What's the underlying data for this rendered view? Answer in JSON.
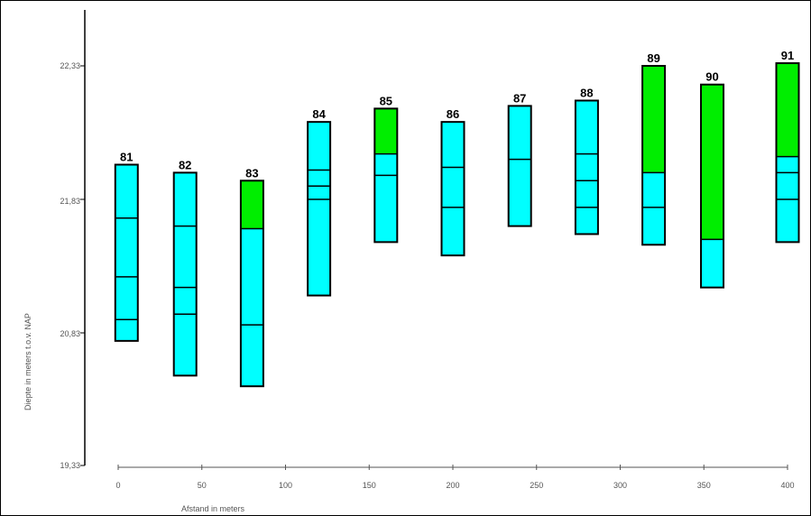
{
  "chart_data": {
    "type": "bar",
    "title": "",
    "xlabel": "Afstand in meters",
    "ylabel": "Diepte in meters t.o.v. NAP",
    "xlim": [
      0,
      400
    ],
    "ylim": [
      19.33,
      22.83
    ],
    "x_ticks": [
      "0",
      "50",
      "100",
      "150",
      "200",
      "250",
      "300",
      "350",
      "400"
    ],
    "y_ticks": [
      "22,33",
      "21,83",
      "20,83",
      "19,33"
    ],
    "colors": {
      "green": "#00ee00",
      "cyan": "#00ffff",
      "outline": "#000000"
    },
    "boreholes": [
      {
        "label": "81",
        "x": 5,
        "top": 21.96,
        "bottom": 21.3,
        "green_to": null,
        "layer_lines": [
          21.76,
          21.54,
          21.38
        ]
      },
      {
        "label": "82",
        "x": 40,
        "top": 21.93,
        "bottom": 21.17,
        "green_to": null,
        "layer_lines": [
          21.73,
          21.5,
          21.4
        ]
      },
      {
        "label": "83",
        "x": 80,
        "top": 21.9,
        "bottom": 21.13,
        "green_to": 21.72,
        "layer_lines": [
          21.72,
          21.36
        ]
      },
      {
        "label": "84",
        "x": 120,
        "top": 22.12,
        "bottom": 21.47,
        "green_to": null,
        "layer_lines": [
          21.94,
          21.88,
          21.83
        ]
      },
      {
        "label": "85",
        "x": 160,
        "top": 22.17,
        "bottom": 21.67,
        "green_to": 22.0,
        "layer_lines": [
          22.0,
          21.92
        ]
      },
      {
        "label": "86",
        "x": 200,
        "top": 22.12,
        "bottom": 21.62,
        "green_to": null,
        "layer_lines": [
          21.95,
          21.8
        ]
      },
      {
        "label": "87",
        "x": 240,
        "top": 22.18,
        "bottom": 21.73,
        "green_to": null,
        "layer_lines": [
          21.98
        ]
      },
      {
        "label": "88",
        "x": 280,
        "top": 22.2,
        "bottom": 21.7,
        "green_to": null,
        "layer_lines": [
          22.0,
          21.9,
          21.8
        ]
      },
      {
        "label": "89",
        "x": 320,
        "top": 22.33,
        "bottom": 21.66,
        "green_to": 21.93,
        "layer_lines": [
          21.93,
          21.8
        ]
      },
      {
        "label": "90",
        "x": 355,
        "top": 22.26,
        "bottom": 21.5,
        "green_to": 21.68,
        "layer_lines": [
          21.68
        ]
      },
      {
        "label": "91",
        "x": 400,
        "top": 22.34,
        "bottom": 21.67,
        "green_to": 21.99,
        "layer_lines": [
          21.99,
          21.93,
          21.83
        ]
      }
    ]
  }
}
